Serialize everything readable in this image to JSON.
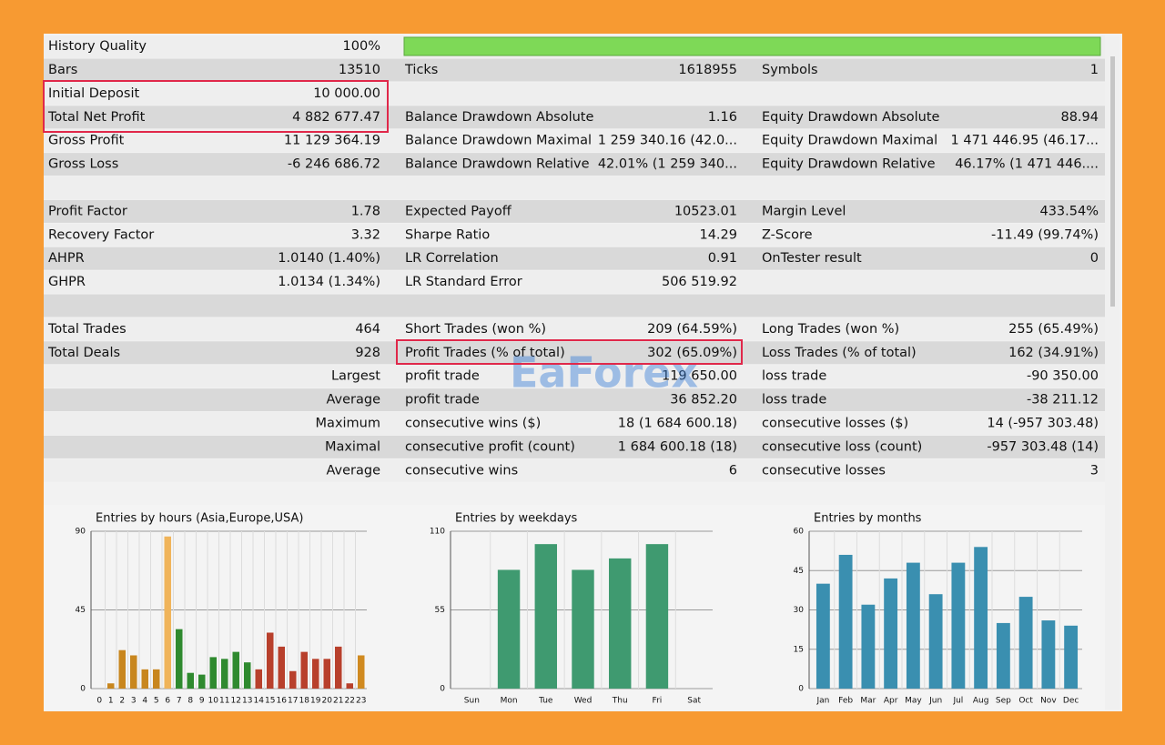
{
  "report": {
    "history_quality": {
      "label": "History Quality",
      "value": "100%"
    },
    "rows": [
      [
        {
          "label": "Bars",
          "value": "13510"
        },
        {
          "label": "Ticks",
          "value": "1618955"
        },
        {
          "label": "Symbols",
          "value": "1"
        }
      ],
      [
        {
          "label": "Initial Deposit",
          "value": "10 000.00"
        },
        null,
        null
      ],
      [
        {
          "label": "Total Net Profit",
          "value": "4 882 677.47"
        },
        {
          "label": "Balance Drawdown Absolute",
          "value": "1.16"
        },
        {
          "label": "Equity Drawdown Absolute",
          "value": "88.94"
        }
      ],
      [
        {
          "label": "Gross Profit",
          "value": "11 129 364.19"
        },
        {
          "label": "Balance Drawdown Maximal",
          "value": "1 259 340.16 (42.0..."
        },
        {
          "label": "Equity Drawdown Maximal",
          "value": "1 471 446.95 (46.17..."
        }
      ],
      [
        {
          "label": "Gross Loss",
          "value": "-6 246 686.72"
        },
        {
          "label": "Balance Drawdown Relative",
          "value": "42.01% (1 259 340..."
        },
        {
          "label": "Equity Drawdown Relative",
          "value": "46.17% (1 471 446...."
        }
      ],
      [],
      [
        {
          "label": "Profit Factor",
          "value": "1.78"
        },
        {
          "label": "Expected Payoff",
          "value": "10523.01"
        },
        {
          "label": "Margin Level",
          "value": "433.54%"
        }
      ],
      [
        {
          "label": "Recovery Factor",
          "value": "3.32"
        },
        {
          "label": "Sharpe Ratio",
          "value": "14.29"
        },
        {
          "label": "Z-Score",
          "value": "-11.49 (99.74%)"
        }
      ],
      [
        {
          "label": "AHPR",
          "value": "1.0140 (1.40%)"
        },
        {
          "label": "LR Correlation",
          "value": "0.91"
        },
        {
          "label": "OnTester result",
          "value": "0"
        }
      ],
      [
        {
          "label": "GHPR",
          "value": "1.0134 (1.34%)"
        },
        {
          "label": "LR Standard Error",
          "value": "506 519.92"
        },
        null
      ],
      [],
      [
        {
          "label": "Total Trades",
          "value": "464"
        },
        {
          "label": "Short Trades (won %)",
          "value": "209 (64.59%)"
        },
        {
          "label": "Long Trades (won %)",
          "value": "255 (65.49%)"
        }
      ],
      [
        {
          "label": "Total Deals",
          "value": "928"
        },
        {
          "label": "Profit Trades (% of total)",
          "value": "302 (65.09%)"
        },
        {
          "label": "Loss Trades (% of total)",
          "value": "162 (34.91%)"
        }
      ],
      [
        {
          "value": "Largest"
        },
        {
          "label": "profit trade",
          "value": "119 650.00"
        },
        {
          "label": "loss trade",
          "value": "-90 350.00"
        }
      ],
      [
        {
          "value": "Average"
        },
        {
          "label": "profit trade",
          "value": "36 852.20"
        },
        {
          "label": "loss trade",
          "value": "-38 211.12"
        }
      ],
      [
        {
          "value": "Maximum"
        },
        {
          "label": "consecutive wins ($)",
          "value": "18 (1 684 600.18)"
        },
        {
          "label": "consecutive losses ($)",
          "value": "14 (-957 303.48)"
        }
      ],
      [
        {
          "value": "Maximal"
        },
        {
          "label": "consecutive profit (count)",
          "value": "1 684 600.18 (18)"
        },
        {
          "label": "consecutive loss (count)",
          "value": "-957 303.48 (14)"
        }
      ],
      [
        {
          "value": "Average"
        },
        {
          "label": "consecutive wins",
          "value": "6"
        },
        {
          "label": "consecutive losses",
          "value": "3"
        }
      ]
    ],
    "watermark": "EaForex"
  },
  "chart_data": [
    {
      "type": "bar",
      "title": "Entries by hours (Asia,Europe,USA)",
      "categories": [
        "0",
        "1",
        "2",
        "3",
        "4",
        "5",
        "6",
        "7",
        "8",
        "9",
        "10",
        "11",
        "12",
        "13",
        "14",
        "15",
        "16",
        "17",
        "18",
        "19",
        "20",
        "21",
        "22",
        "23"
      ],
      "values": [
        0,
        3,
        22,
        19,
        11,
        11,
        87,
        34,
        9,
        8,
        18,
        17,
        21,
        15,
        11,
        32,
        24,
        10,
        21,
        17,
        17,
        24,
        3,
        19
      ],
      "colors": [
        "#c8861e",
        "#c8861e",
        "#c8861e",
        "#c8861e",
        "#c8861e",
        "#c8861e",
        "#f0b45a",
        "#2f8a2f",
        "#2f8a2f",
        "#2f8a2f",
        "#2f8a2f",
        "#2f8a2f",
        "#2f8a2f",
        "#2f8a2f",
        "#b8402c",
        "#b8402c",
        "#b8402c",
        "#b8402c",
        "#b8402c",
        "#b8402c",
        "#b8402c",
        "#b8402c",
        "#b8402c",
        "#d08a20"
      ],
      "ylim": [
        0,
        90
      ],
      "yticks": [
        0,
        45,
        90
      ],
      "grid": true
    },
    {
      "type": "bar",
      "title": "Entries by weekdays",
      "categories": [
        "Sun",
        "Mon",
        "Tue",
        "Wed",
        "Thu",
        "Fri",
        "Sat"
      ],
      "values": [
        0,
        83,
        101,
        83,
        91,
        101,
        0
      ],
      "color": "#3f9a70",
      "ylim": [
        0,
        110
      ],
      "yticks": [
        0,
        55,
        110
      ],
      "grid": true
    },
    {
      "type": "bar",
      "title": "Entries by months",
      "categories": [
        "Jan",
        "Feb",
        "Mar",
        "Apr",
        "May",
        "Jun",
        "Jul",
        "Aug",
        "Sep",
        "Oct",
        "Nov",
        "Dec"
      ],
      "values": [
        40,
        51,
        32,
        42,
        48,
        36,
        48,
        54,
        25,
        35,
        26,
        24
      ],
      "color": "#3a8fb0",
      "ylim": [
        0,
        60
      ],
      "yticks": [
        0,
        15,
        30,
        45,
        60
      ],
      "grid": true
    }
  ]
}
